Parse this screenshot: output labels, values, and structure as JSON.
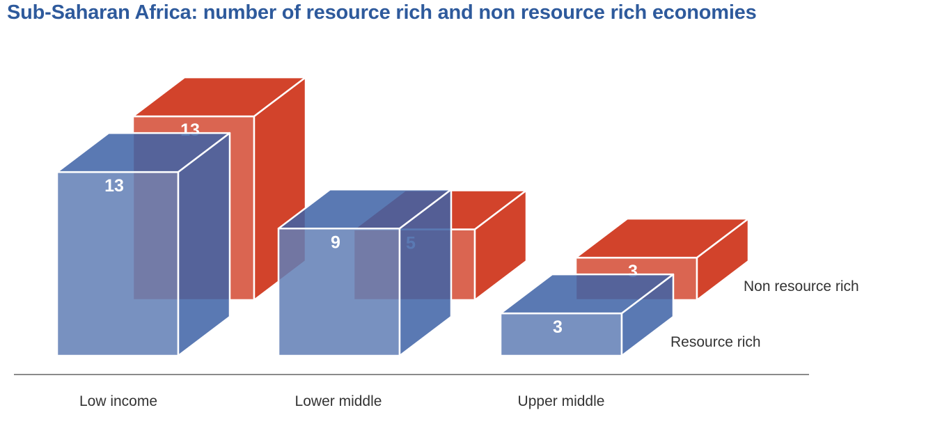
{
  "chart_data": {
    "type": "bar",
    "title": "Sub-Saharan Africa: number of resource rich and non resource rich economies",
    "categories": [
      "Low income",
      "Lower middle",
      "Upper middle"
    ],
    "series": [
      {
        "name": "Non resource rich",
        "values": [
          13,
          5,
          3
        ],
        "color": "#d2432b"
      },
      {
        "name": "Resource rich",
        "values": [
          13,
          9,
          3
        ],
        "color": "#3f63a6"
      }
    ],
    "style": "3d",
    "legend": "right"
  }
}
